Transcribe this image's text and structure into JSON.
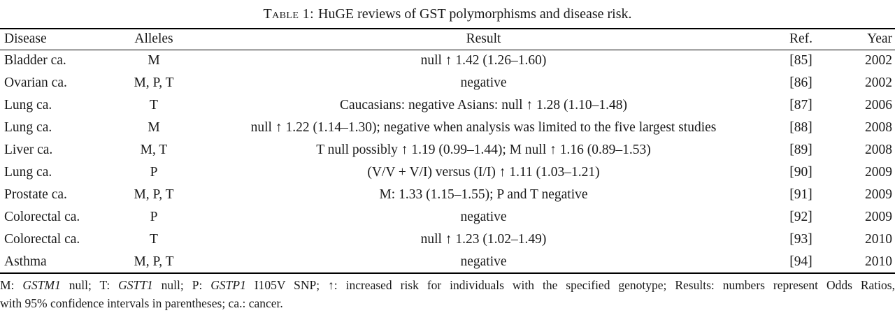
{
  "colors": {
    "text": "#1a1a1a",
    "background": "#ffffff",
    "rule": "#000000"
  },
  "caption": {
    "label": "Table 1:",
    "text": "HuGE reviews of GST polymorphisms and disease risk."
  },
  "table": {
    "columns": [
      {
        "key": "disease",
        "label": "Disease"
      },
      {
        "key": "alleles",
        "label": "Alleles"
      },
      {
        "key": "result",
        "label": "Result"
      },
      {
        "key": "ref",
        "label": "Ref."
      },
      {
        "key": "year",
        "label": "Year"
      }
    ],
    "rows": [
      {
        "disease": "Bladder ca.",
        "alleles": "M",
        "result": "null ↑ 1.42 (1.26–1.60)",
        "ref": "[85]",
        "year": "2002"
      },
      {
        "disease": "Ovarian ca.",
        "alleles": "M, P, T",
        "result": "negative",
        "ref": "[86]",
        "year": "2002"
      },
      {
        "disease": "Lung ca.",
        "alleles": "T",
        "result": "Caucasians: negative Asians: null ↑ 1.28 (1.10–1.48)",
        "ref": "[87]",
        "year": "2006"
      },
      {
        "disease": "Lung ca.",
        "alleles": "M",
        "result": "null ↑ 1.22 (1.14–1.30); negative when analysis was limited to the five largest studies",
        "ref": "[88]",
        "year": "2008"
      },
      {
        "disease": "Liver ca.",
        "alleles": "M, T",
        "result": "T null possibly ↑ 1.19 (0.99–1.44); M null ↑ 1.16 (0.89–1.53)",
        "ref": "[89]",
        "year": "2008"
      },
      {
        "disease": "Lung ca.",
        "alleles": "P",
        "result": "(V/V + V/I) versus (I/I) ↑ 1.11 (1.03–1.21)",
        "ref": "[90]",
        "year": "2009"
      },
      {
        "disease": "Prostate ca.",
        "alleles": "M, P, T",
        "result": "M: 1.33 (1.15–1.55); P and T negative",
        "ref": "[91]",
        "year": "2009"
      },
      {
        "disease": "Colorectal ca.",
        "alleles": "P",
        "result": "negative",
        "ref": "[92]",
        "year": "2009"
      },
      {
        "disease": "Colorectal ca.",
        "alleles": "T",
        "result": "null ↑ 1.23 (1.02–1.49)",
        "ref": "[93]",
        "year": "2010"
      },
      {
        "disease": "Asthma",
        "alleles": "M, P, T",
        "result": "negative",
        "ref": "[94]",
        "year": "2010"
      }
    ]
  },
  "footnote": {
    "line1_segments": [
      {
        "t": "M: ",
        "i": false
      },
      {
        "t": "GSTM1",
        "i": true
      },
      {
        "t": " null; T: ",
        "i": false
      },
      {
        "t": "GSTT1",
        "i": true
      },
      {
        "t": " null; P: ",
        "i": false
      },
      {
        "t": "GSTP1",
        "i": true
      },
      {
        "t": " I105V SNP; ↑: increased risk for individuals with the specified genotype; Results: numbers represent Odds Ratios,",
        "i": false
      }
    ],
    "line2": "with 95% confidence intervals in parentheses; ca.: cancer."
  }
}
